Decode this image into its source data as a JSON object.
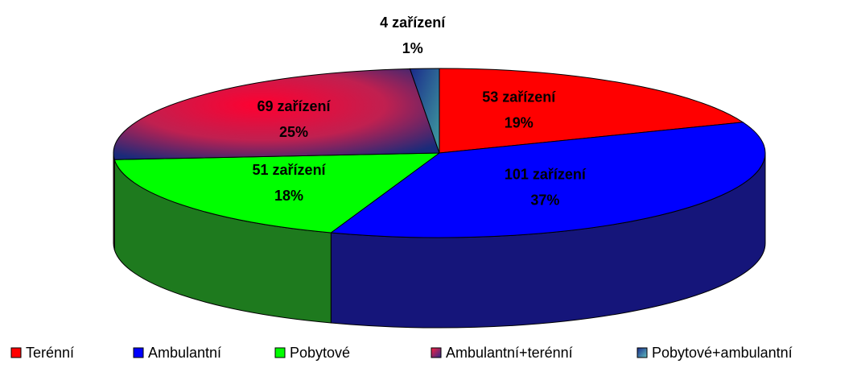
{
  "chart_data": {
    "type": "pie3d",
    "categories": [
      "Terénní",
      "Ambulantní",
      "Pobytové",
      "Ambulantní+terénní",
      "Pobytové+ambulantní"
    ],
    "values": [
      53,
      101,
      51,
      69,
      4
    ],
    "value_labels": [
      "53 zařízení",
      "101 zařízení",
      "51 zařízení",
      "69 zařízení",
      "4 zařízení"
    ],
    "percent_labels": [
      "19%",
      "37%",
      "18%",
      "25%",
      "1%"
    ],
    "colors": [
      "#ff0000",
      "#0000ff",
      "#00ff00",
      "#d0203a",
      "#1a4a6a"
    ],
    "legend": "bottom"
  }
}
